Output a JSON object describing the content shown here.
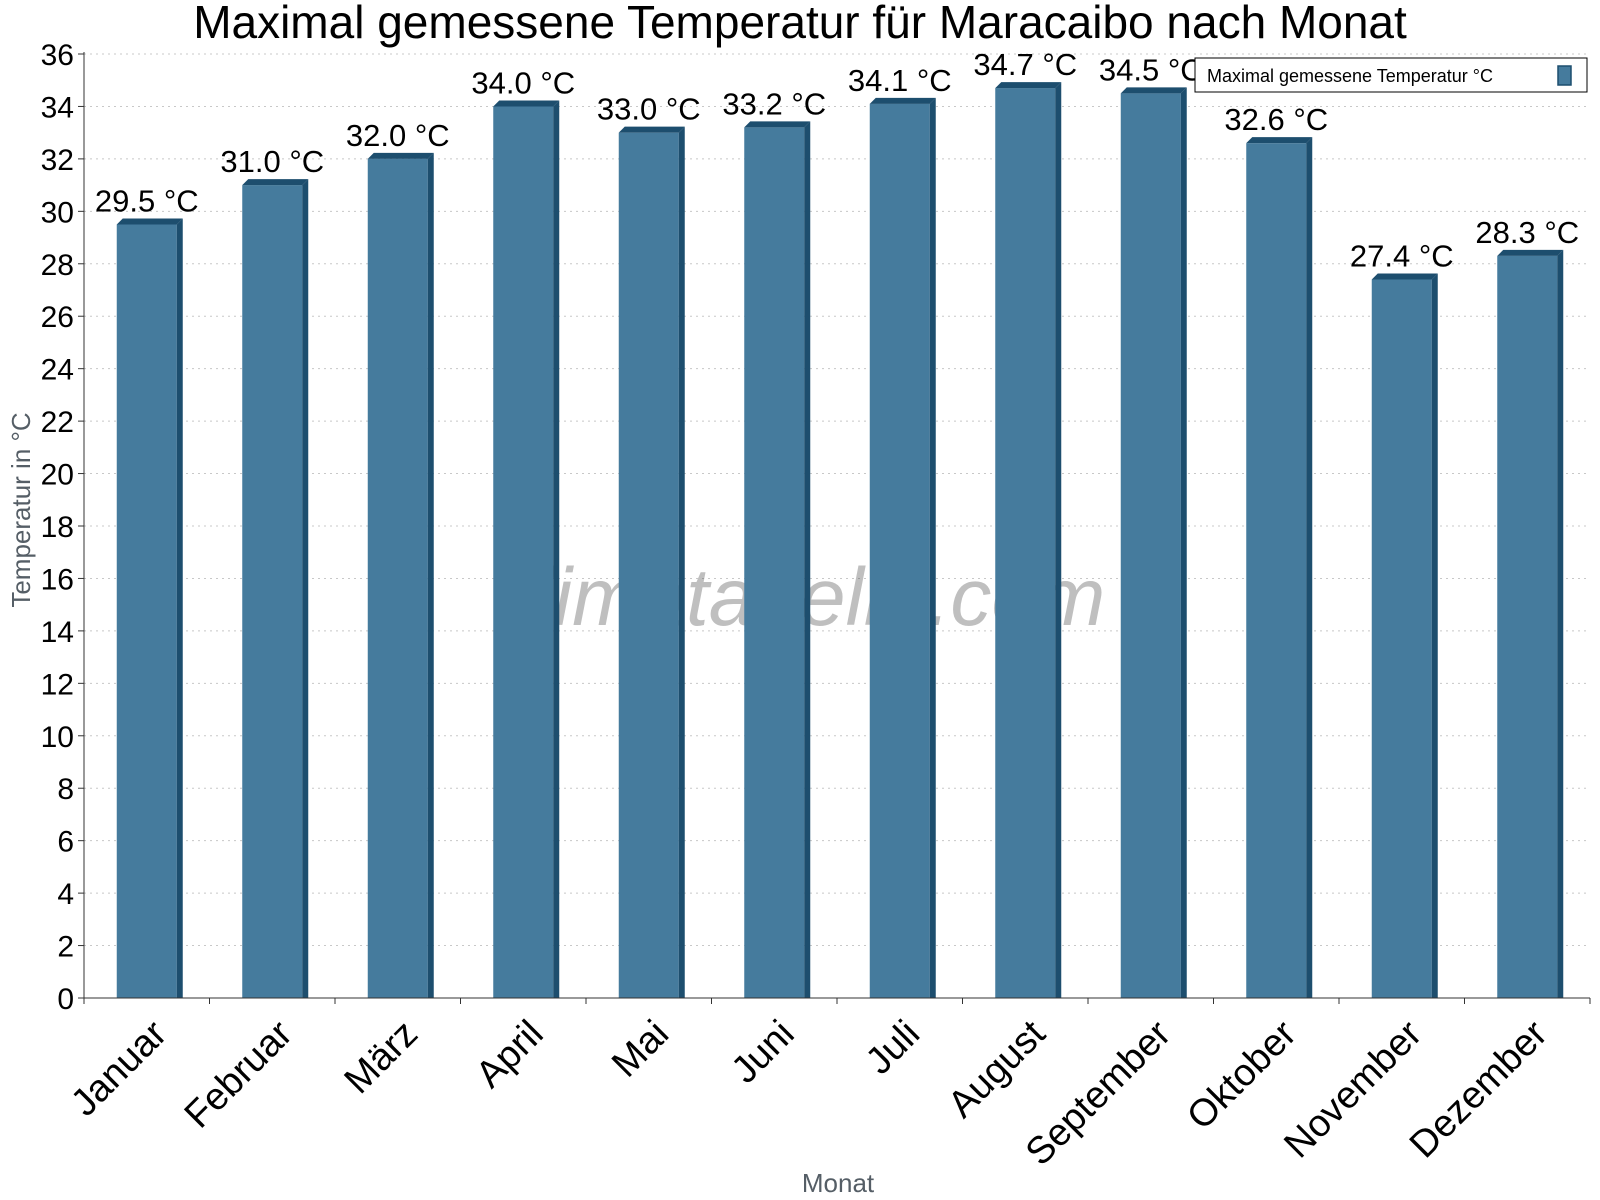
{
  "watermark": "klimatabelle.com",
  "colors": {
    "bar": "#457b9d",
    "bar_side": "#1d4e6e",
    "bar_top": "#1d4e6e",
    "grid": "#c8c8c8",
    "axis": "#333333"
  },
  "chart_data": {
    "type": "bar",
    "title": "Maximal gemessene Temperatur für Maracaibo nach Monat",
    "xlabel": "Monat",
    "ylabel": "Temperatur in °C",
    "ylim": [
      0,
      36
    ],
    "ytick_step": 2,
    "grid": true,
    "legend_position": "top-right",
    "categories": [
      "Januar",
      "Februar",
      "März",
      "April",
      "Mai",
      "Juni",
      "Juli",
      "August",
      "September",
      "Oktober",
      "November",
      "Dezember"
    ],
    "series": [
      {
        "name": "Maximal gemessene Temperatur °C",
        "values": [
          29.5,
          31.0,
          32.0,
          34.0,
          33.0,
          33.2,
          34.1,
          34.7,
          34.5,
          32.6,
          27.4,
          28.3
        ],
        "labels": [
          "29.5 °C",
          "31.0 °C",
          "32.0 °C",
          "34.0 °C",
          "33.0 °C",
          "33.2 °C",
          "34.1 °C",
          "34.7 °C",
          "34.5 °C",
          "32.6 °C",
          "27.4 °C",
          "28.3 °C"
        ]
      }
    ]
  }
}
